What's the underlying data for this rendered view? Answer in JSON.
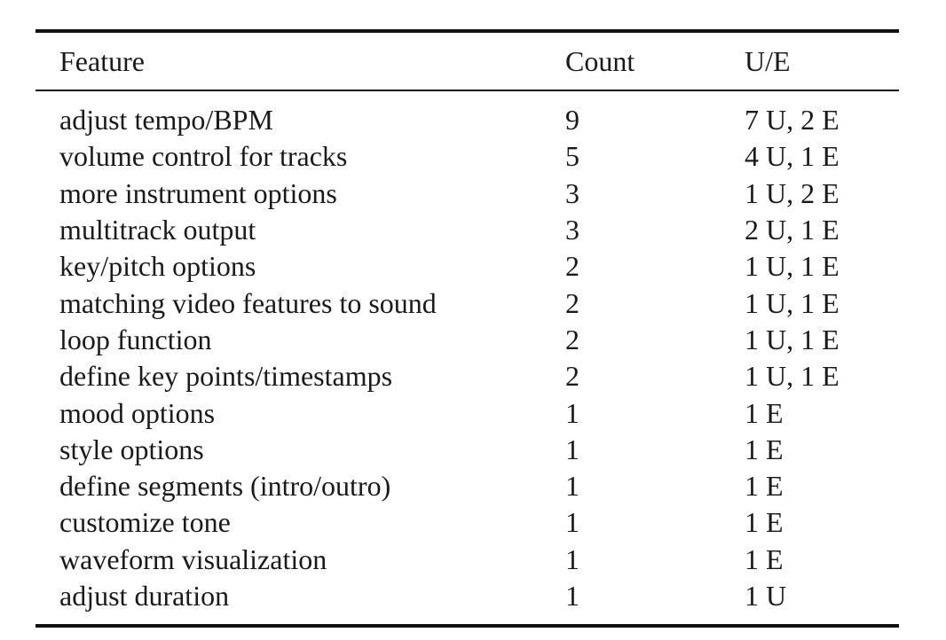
{
  "table": {
    "columns": [
      "Feature",
      "Count",
      "U/E"
    ],
    "rows": [
      {
        "feature": "adjust tempo/BPM",
        "count": "9",
        "ue": "7 U, 2 E"
      },
      {
        "feature": "volume control for tracks",
        "count": "5",
        "ue": "4 U, 1 E"
      },
      {
        "feature": "more instrument options",
        "count": "3",
        "ue": "1 U, 2 E"
      },
      {
        "feature": "multitrack output",
        "count": "3",
        "ue": "2 U, 1 E"
      },
      {
        "feature": "key/pitch options",
        "count": "2",
        "ue": "1 U, 1 E"
      },
      {
        "feature": "matching video features to sound",
        "count": "2",
        "ue": "1 U, 1 E"
      },
      {
        "feature": "loop function",
        "count": "2",
        "ue": "1 U, 1 E"
      },
      {
        "feature": "define key points/timestamps",
        "count": "2",
        "ue": "1 U, 1 E"
      },
      {
        "feature": "mood options",
        "count": "1",
        "ue": "1 E"
      },
      {
        "feature": "style options",
        "count": "1",
        "ue": "1 E"
      },
      {
        "feature": "define segments (intro/outro)",
        "count": "1",
        "ue": "1 E"
      },
      {
        "feature": "customize tone",
        "count": "1",
        "ue": "1 E"
      },
      {
        "feature": "waveform visualization",
        "count": "1",
        "ue": "1 E"
      },
      {
        "feature": "adjust duration",
        "count": "1",
        "ue": "1 U"
      }
    ]
  }
}
